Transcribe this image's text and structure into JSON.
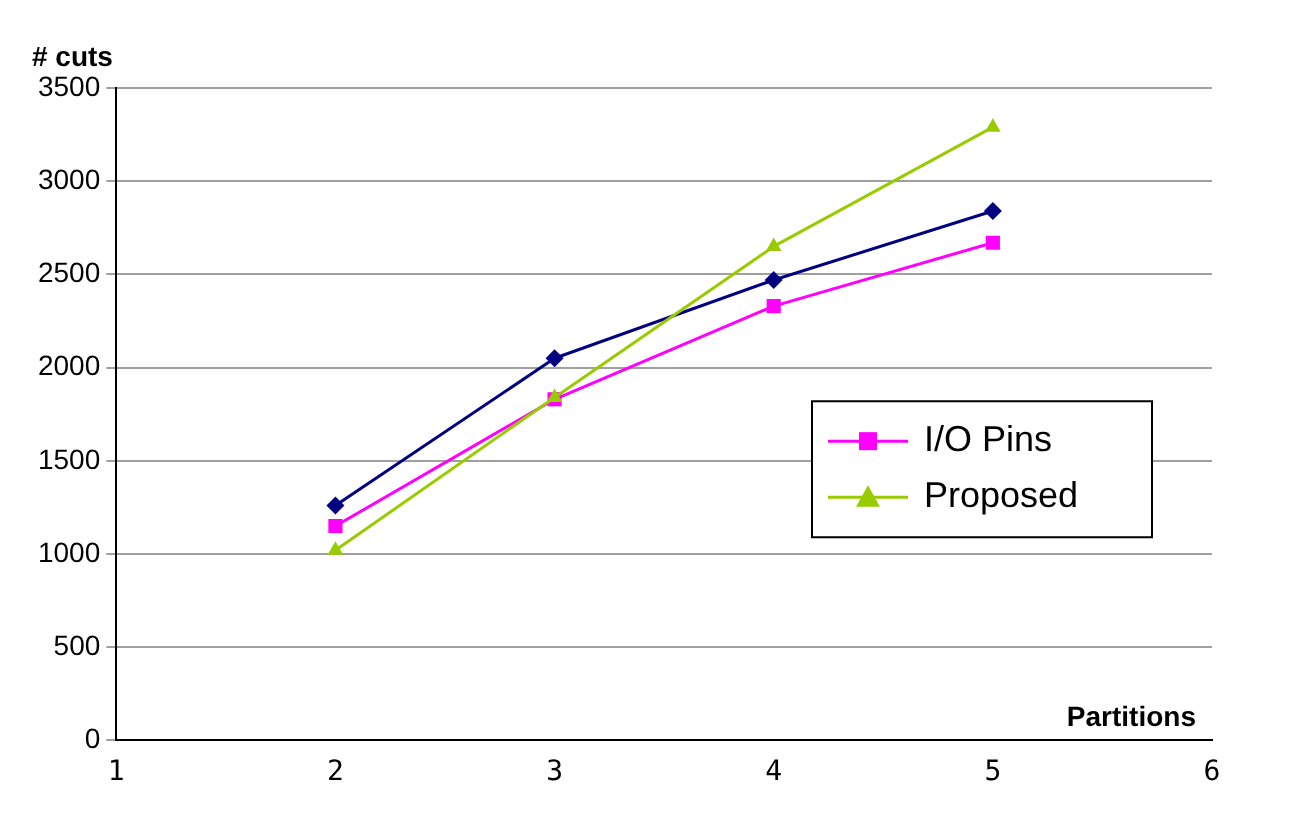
{
  "chart_data": {
    "type": "line",
    "xlabel": "Partitions",
    "ylabel": "# cuts",
    "x": [
      2,
      3,
      4,
      5
    ],
    "xlim": [
      1,
      6
    ],
    "xticks": [
      1,
      2,
      3,
      4,
      5,
      6
    ],
    "ylim": [
      0,
      3500
    ],
    "yticks": [
      0,
      500,
      1000,
      1500,
      2000,
      2500,
      3000,
      3500
    ],
    "grid": "y",
    "legend": "right",
    "series": [
      {
        "color": "#000080",
        "marker": "diamond",
        "values": [
          1260,
          2050,
          2470,
          2840
        ]
      },
      {
        "name": "I/O Pins",
        "color": "#ff00ff",
        "marker": "square",
        "values": [
          1150,
          1830,
          2330,
          2670
        ]
      },
      {
        "name": "Proposed",
        "color": "#99cc00",
        "marker": "triangle",
        "values": [
          1020,
          1840,
          2650,
          3290
        ]
      }
    ]
  }
}
